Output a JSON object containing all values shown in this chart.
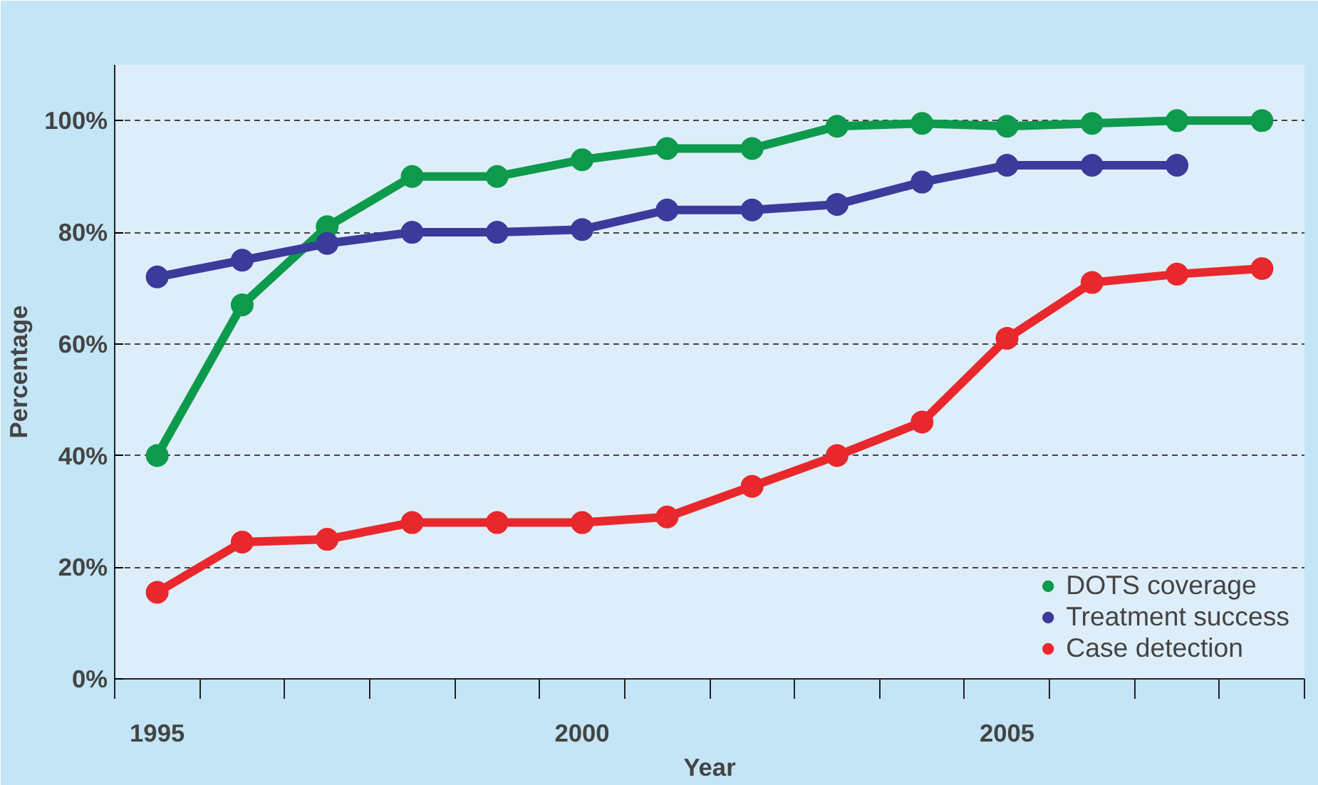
{
  "chart_data": {
    "type": "line",
    "xlabel": "Year",
    "ylabel": "Percentage",
    "x": [
      1995,
      1996,
      1997,
      1998,
      1999,
      2000,
      2001,
      2002,
      2003,
      2004,
      2005,
      2006,
      2007,
      2008
    ],
    "series": [
      {
        "name": "DOTS coverage",
        "color": "#0d9a4c",
        "values": [
          40,
          67,
          81,
          90,
          90,
          93,
          95,
          95,
          99,
          99.5,
          99,
          99.5,
          100,
          100
        ]
      },
      {
        "name": "Treatment success",
        "color": "#3b3b9c",
        "values": [
          72,
          75,
          78,
          80,
          80,
          80.5,
          84,
          84,
          85,
          89,
          92,
          92,
          92,
          null
        ]
      },
      {
        "name": "Case detection",
        "color": "#e8282c",
        "values": [
          15.5,
          24.5,
          25,
          28,
          28,
          28,
          29,
          34.5,
          40,
          46,
          61,
          71,
          72.5,
          73.5
        ]
      }
    ],
    "xlim": [
      1994.5,
      2008.5
    ],
    "ylim": [
      0,
      110
    ],
    "xticks": [
      {
        "value": 1995,
        "label": "1995"
      },
      {
        "value": 2000,
        "label": "2000"
      },
      {
        "value": 2005,
        "label": "2005"
      },
      {
        "value": 1994.5,
        "label": null
      },
      {
        "value": 1995.5,
        "label": null
      },
      {
        "value": 1996.5,
        "label": null
      },
      {
        "value": 1997.5,
        "label": null
      },
      {
        "value": 1998.5,
        "label": null
      },
      {
        "value": 1999.5,
        "label": null
      },
      {
        "value": 2000.5,
        "label": null
      },
      {
        "value": 2001.5,
        "label": null
      },
      {
        "value": 2002.5,
        "label": null
      },
      {
        "value": 2003.5,
        "label": null
      },
      {
        "value": 2004.5,
        "label": null
      },
      {
        "value": 2005.5,
        "label": null
      },
      {
        "value": 2006.5,
        "label": null
      },
      {
        "value": 2007.5,
        "label": null
      },
      {
        "value": 2008.5,
        "label": null
      }
    ],
    "yticks": [
      {
        "value": 0,
        "label": "0%"
      },
      {
        "value": 20,
        "label": "20%"
      },
      {
        "value": 40,
        "label": "40%"
      },
      {
        "value": 60,
        "label": "60%"
      },
      {
        "value": 80,
        "label": "80%"
      },
      {
        "value": 100,
        "label": "100%"
      }
    ],
    "grid": "y",
    "legend": "bottom right",
    "marker": "circle",
    "line_style": "solid"
  }
}
